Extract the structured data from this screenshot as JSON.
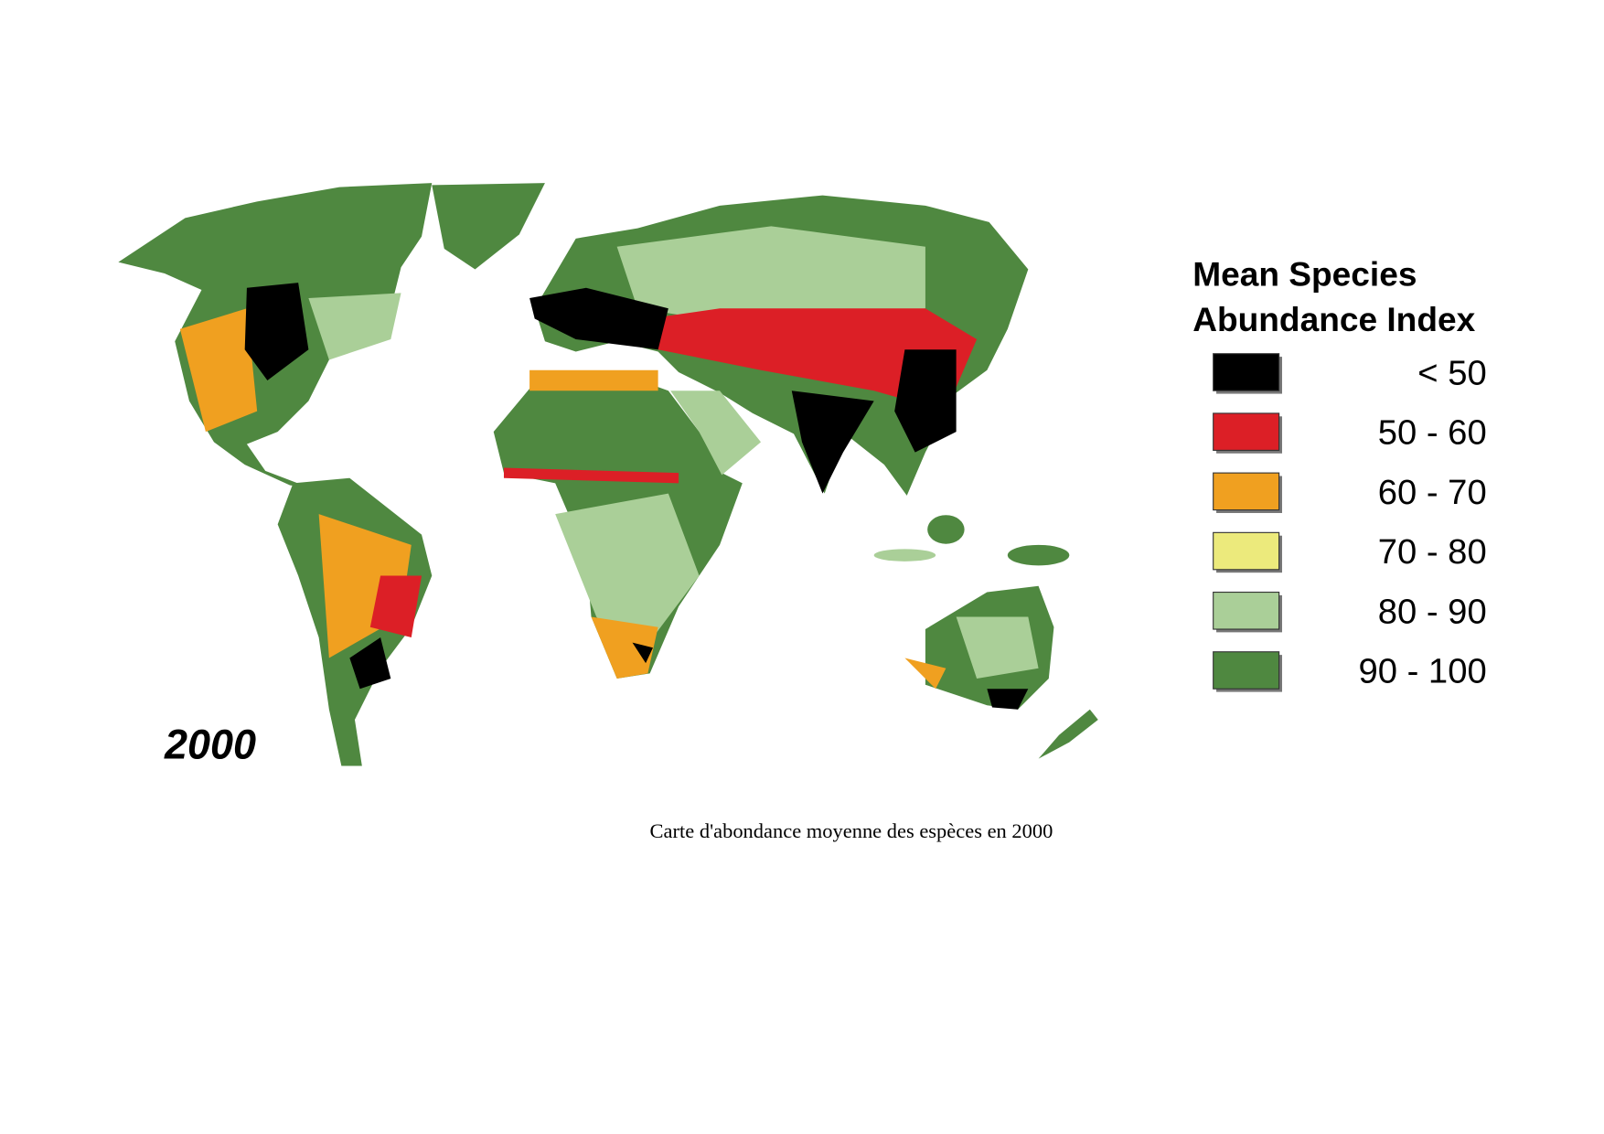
{
  "map": {
    "year_label": "2000"
  },
  "legend": {
    "title_lines": [
      "Mean Species",
      "Abundance Index"
    ],
    "items": [
      {
        "label": "< 50",
        "color": "#000000"
      },
      {
        "label": "50 - 60",
        "color": "#dc1f26"
      },
      {
        "label": "60 - 70",
        "color": "#f0a020"
      },
      {
        "label": "70 - 80",
        "color": "#ecea7c"
      },
      {
        "label": "80 - 90",
        "color": "#aacf98"
      },
      {
        "label": "90 - 100",
        "color": "#4f8840"
      }
    ]
  },
  "caption": "Carte d'abondance moyenne des espèces en 2000"
}
